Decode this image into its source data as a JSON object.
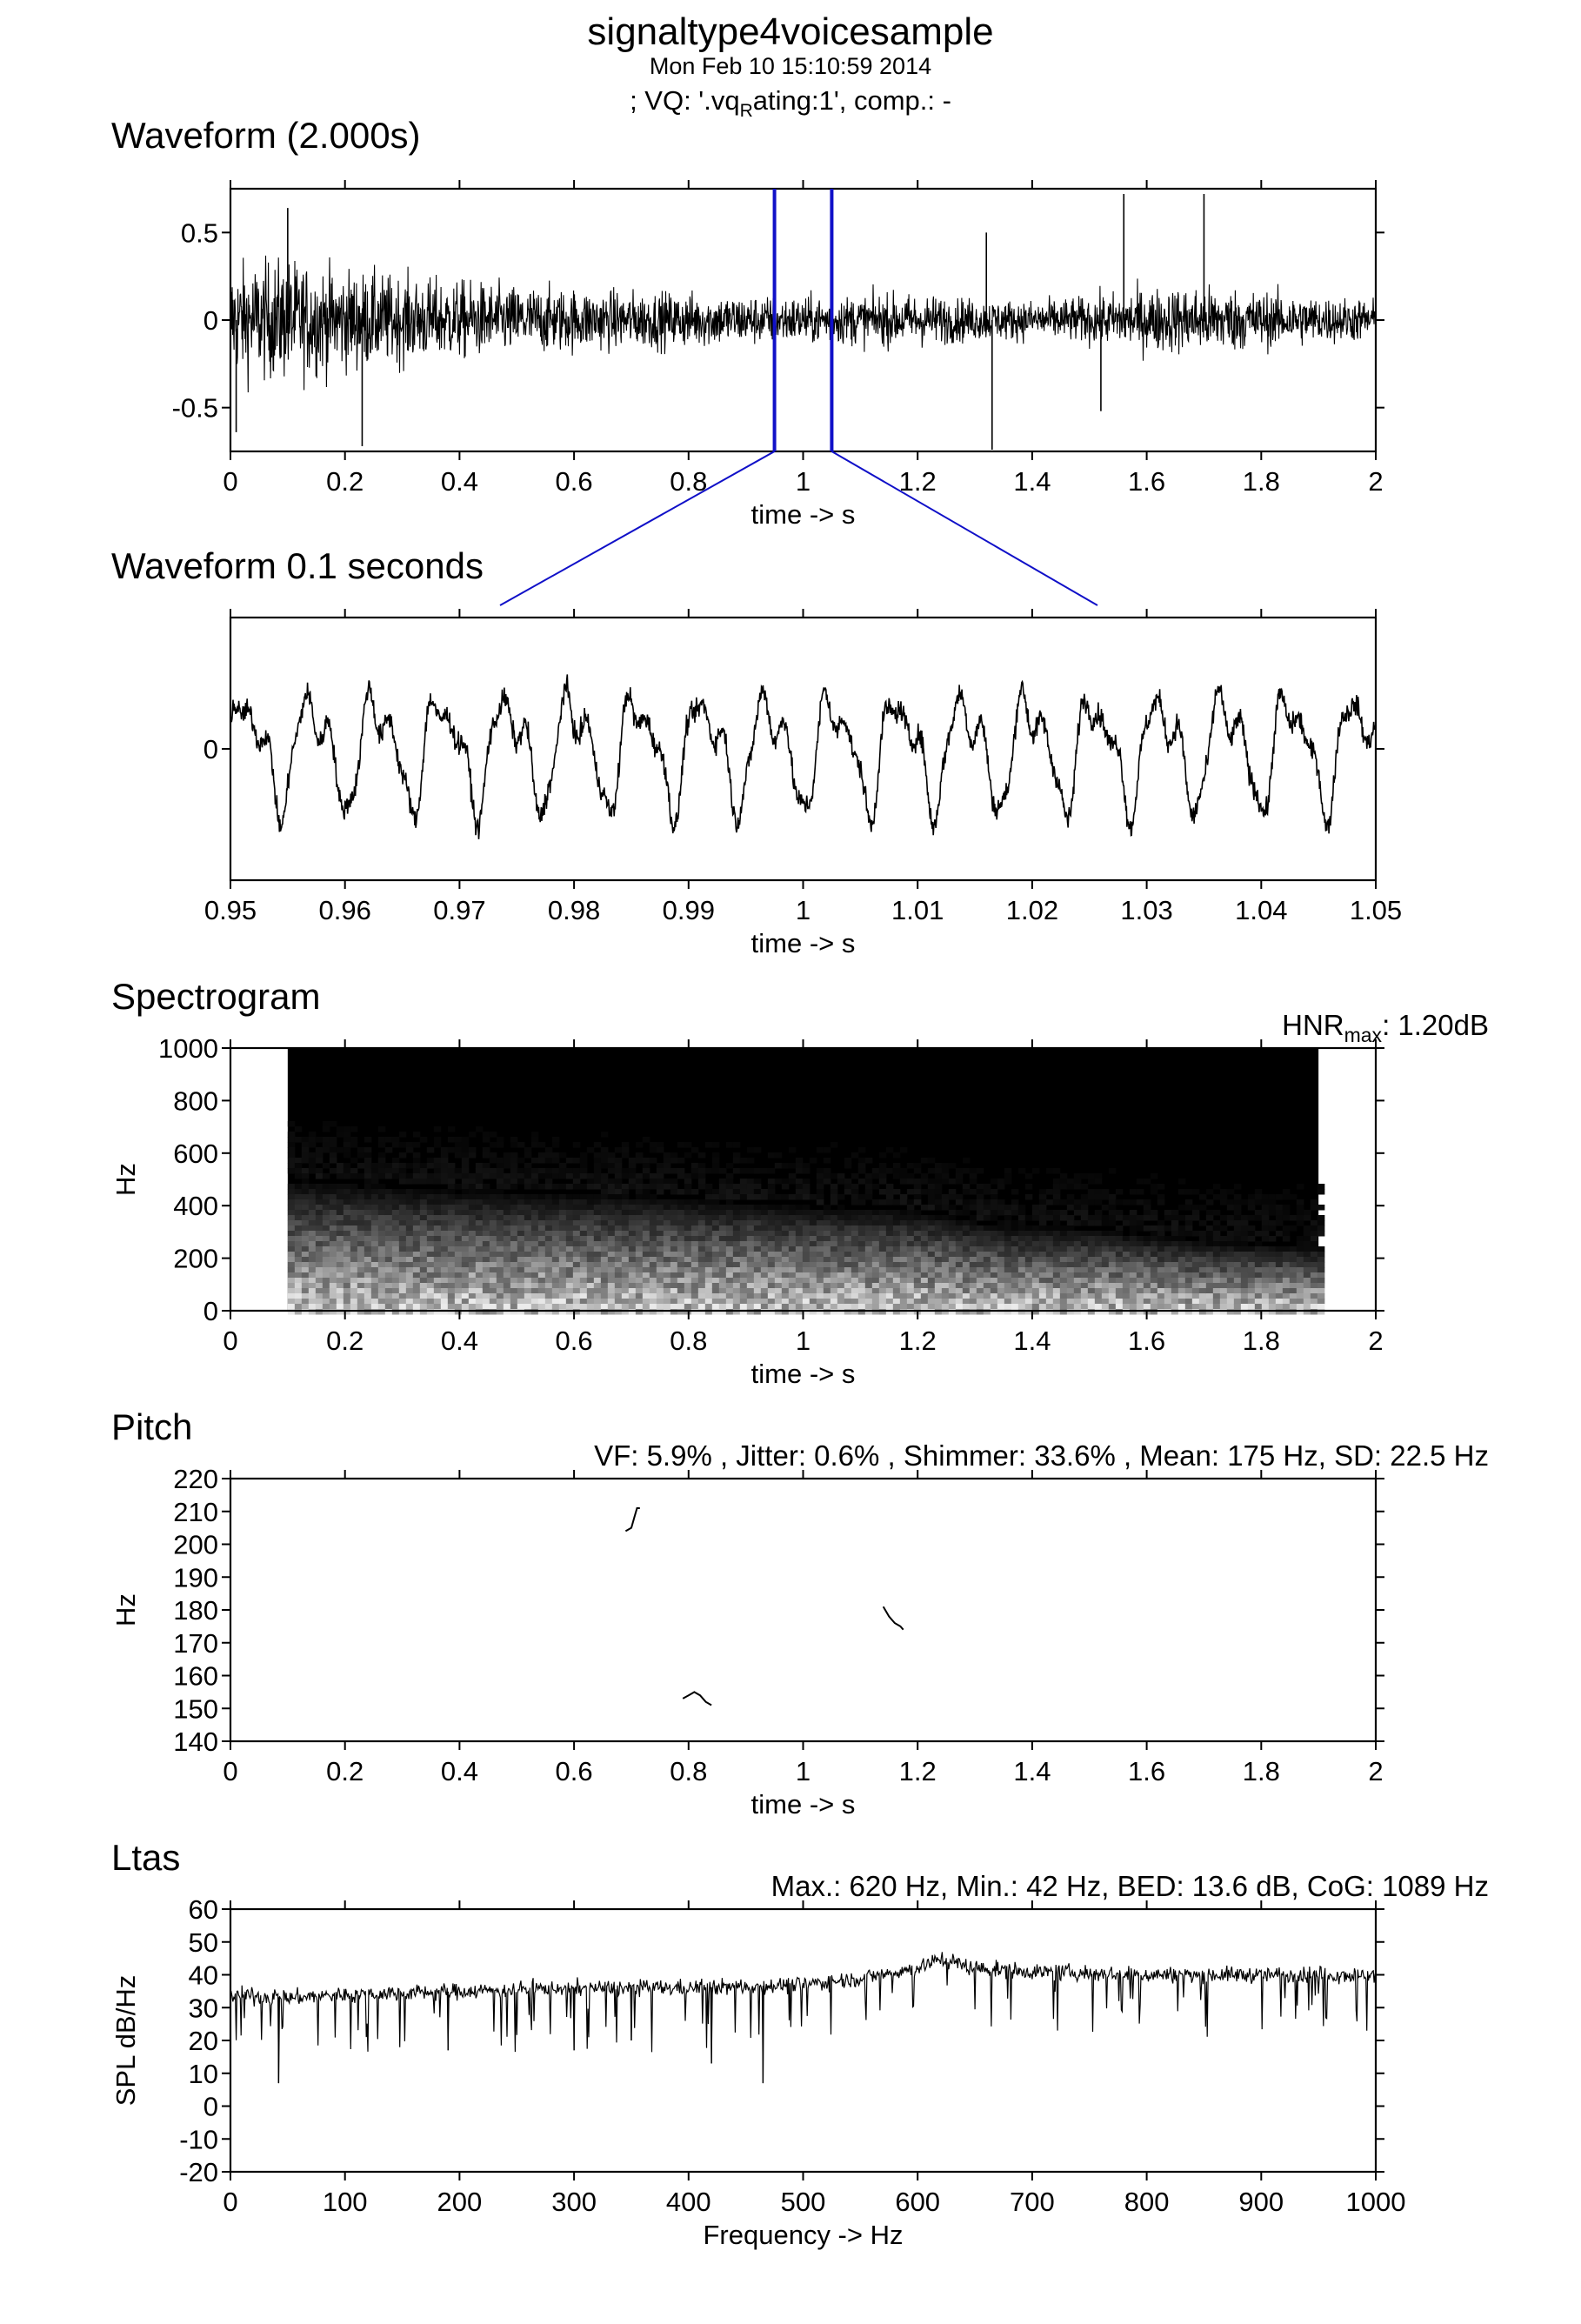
{
  "header": {
    "title": "signaltype4voicesample",
    "date": "Mon Feb 10 15:10:59 2014",
    "vq_pre": "; VQ: '.vq",
    "vq_sub": "R",
    "vq_post": "ating:1', comp.: -"
  },
  "colors": {
    "ink": "#000000",
    "zoom": "#1010c8",
    "background": "#ffffff"
  },
  "chart_data": [
    {
      "id": "waveform",
      "type": "line",
      "title": "Waveform (2.000s)",
      "xlabel": "time -> s",
      "ylabel": "",
      "xlim": [
        0,
        2
      ],
      "ylim": [
        -0.75,
        0.75
      ],
      "xticks": [
        0,
        0.2,
        0.4,
        0.6,
        0.8,
        1,
        1.2,
        1.4,
        1.6,
        1.8,
        2
      ],
      "xtick_labels": [
        "0",
        "0.2",
        "0.4",
        "0.6",
        "0.8",
        "1",
        "1.2",
        "1.4",
        "1.6",
        "1.8",
        "2"
      ],
      "yticks": [
        0.5,
        0,
        -0.5
      ],
      "ytick_labels": [
        "0.5",
        "0",
        "-0.5"
      ],
      "highlight_window": [
        0.95,
        1.05
      ],
      "envelope": {
        "t": [
          0,
          0.1,
          0.2,
          0.3,
          0.4,
          0.5,
          0.6,
          0.7,
          0.8,
          0.9,
          1.0,
          1.1,
          1.2,
          1.3,
          1.4,
          1.5,
          1.6,
          1.7,
          1.8,
          1.9,
          2.0
        ],
        "amp": [
          0.42,
          0.46,
          0.38,
          0.33,
          0.3,
          0.26,
          0.24,
          0.22,
          0.21,
          0.19,
          0.18,
          0.19,
          0.2,
          0.16,
          0.15,
          0.18,
          0.24,
          0.26,
          0.22,
          0.18,
          0.16
        ]
      },
      "spikes": [
        {
          "x": 0.1,
          "y": 0.64
        },
        {
          "x": 0.23,
          "y": -0.72
        },
        {
          "x": 1.33,
          "y": -0.74
        },
        {
          "x": 1.32,
          "y": 0.5
        },
        {
          "x": 1.56,
          "y": 0.72
        },
        {
          "x": 1.7,
          "y": 0.72
        },
        {
          "x": 1.52,
          "y": -0.52
        },
        {
          "x": 0.01,
          "y": -0.64
        }
      ]
    },
    {
      "id": "zoom",
      "type": "line",
      "title": "Waveform 0.1 seconds",
      "xlabel": "time -> s",
      "ylabel": "",
      "xlim": [
        0.95,
        1.05
      ],
      "ylim": [
        -0.25,
        0.25
      ],
      "xticks": [
        0.95,
        0.96,
        0.97,
        0.98,
        0.99,
        1.0,
        1.01,
        1.02,
        1.03,
        1.04,
        1.05
      ],
      "xtick_labels": [
        "0.95",
        "0.96",
        "0.97",
        "0.98",
        "0.99",
        "1",
        "1.01",
        "1.02",
        "1.03",
        "1.04",
        "1.05"
      ],
      "yticks": [
        0
      ],
      "ytick_labels": [
        "0"
      ],
      "period_s": 0.0057,
      "amplitude": 0.12
    },
    {
      "id": "spectrogram",
      "type": "heatmap",
      "title": "Spectrogram",
      "annotation_pre": "HNR",
      "annotation_sub": "max",
      "annotation_post": ": 1.20dB",
      "xlabel": "time -> s",
      "ylabel": "Hz",
      "xlim": [
        0,
        2
      ],
      "ylim": [
        0,
        1000
      ],
      "data_xlim": [
        0.1,
        1.9
      ],
      "xticks": [
        0,
        0.2,
        0.4,
        0.6,
        0.8,
        1,
        1.2,
        1.4,
        1.6,
        1.8,
        2
      ],
      "xtick_labels": [
        "0",
        "0.2",
        "0.4",
        "0.6",
        "0.8",
        "1",
        "1.2",
        "1.4",
        "1.6",
        "1.8",
        "2"
      ],
      "yticks": [
        0,
        200,
        400,
        600,
        800,
        1000
      ],
      "ytick_labels": [
        "0",
        "200",
        "400",
        "600",
        "800",
        "1000"
      ],
      "energy_ceiling_hz": [
        {
          "t": 0.1,
          "f": 520
        },
        {
          "t": 0.4,
          "f": 480
        },
        {
          "t": 0.7,
          "f": 460
        },
        {
          "t": 1.0,
          "f": 420
        },
        {
          "t": 1.2,
          "f": 400
        },
        {
          "t": 1.35,
          "f": 340
        },
        {
          "t": 1.5,
          "f": 330
        },
        {
          "t": 1.7,
          "f": 280
        },
        {
          "t": 1.9,
          "f": 260
        }
      ]
    },
    {
      "id": "pitch",
      "type": "line",
      "title": "Pitch",
      "annotation": "VF: 5.9% , Jitter: 0.6% , Shimmer: 33.6% , Mean: 175 Hz, SD: 22.5 Hz",
      "xlabel": "time -> s",
      "ylabel": "Hz",
      "xlim": [
        0,
        2
      ],
      "ylim": [
        140,
        220
      ],
      "xticks": [
        0,
        0.2,
        0.4,
        0.6,
        0.8,
        1,
        1.2,
        1.4,
        1.6,
        1.8,
        2
      ],
      "xtick_labels": [
        "0",
        "0.2",
        "0.4",
        "0.6",
        "0.8",
        "1",
        "1.2",
        "1.4",
        "1.6",
        "1.8",
        "2"
      ],
      "yticks": [
        140,
        150,
        160,
        170,
        180,
        190,
        200,
        210,
        220
      ],
      "ytick_labels": [
        "140",
        "150",
        "160",
        "170",
        "180",
        "190",
        "200",
        "210",
        "220"
      ],
      "segments": [
        [
          [
            0.69,
            204
          ],
          [
            0.7,
            205
          ],
          [
            0.705,
            208
          ],
          [
            0.71,
            211
          ],
          [
            0.715,
            211
          ]
        ],
        [
          [
            0.79,
            153
          ],
          [
            0.8,
            154
          ],
          [
            0.81,
            155
          ],
          [
            0.82,
            154
          ],
          [
            0.83,
            152
          ],
          [
            0.84,
            151
          ]
        ],
        [
          [
            1.14,
            181
          ],
          [
            1.15,
            178
          ],
          [
            1.16,
            176
          ],
          [
            1.17,
            175
          ],
          [
            1.175,
            174
          ]
        ]
      ]
    },
    {
      "id": "ltas",
      "type": "line",
      "title": "Ltas",
      "annotation": "Max.: 620 Hz, Min.: 42 Hz, BED: 13.6 dB, CoG: 1089 Hz",
      "xlabel": "Frequency -> Hz",
      "ylabel": "SPL dB/Hz",
      "xlim": [
        0,
        1000
      ],
      "ylim": [
        -20,
        60
      ],
      "xticks": [
        0,
        100,
        200,
        300,
        400,
        500,
        600,
        700,
        800,
        900,
        1000
      ],
      "xtick_labels": [
        "0",
        "100",
        "200",
        "300",
        "400",
        "500",
        "600",
        "700",
        "800",
        "900",
        "1000"
      ],
      "yticks": [
        -20,
        -10,
        0,
        10,
        20,
        30,
        40,
        50,
        60
      ],
      "ytick_labels": [
        "-20",
        "-10",
        "0",
        "10",
        "20",
        "30",
        "40",
        "50",
        "60"
      ],
      "trend": {
        "f": [
          0,
          50,
          100,
          200,
          300,
          400,
          500,
          550,
          600,
          620,
          650,
          700,
          800,
          900,
          1000
        ],
        "db": [
          34,
          33,
          34,
          35,
          36,
          36,
          37,
          39,
          42,
          45,
          42,
          41,
          40,
          40,
          40
        ]
      },
      "dips": [
        {
          "f": 42,
          "db": 7
        },
        {
          "f": 465,
          "db": 7
        },
        {
          "f": 420,
          "db": 13
        },
        {
          "f": 190,
          "db": 17
        },
        {
          "f": 300,
          "db": 17
        },
        {
          "f": 350,
          "db": 20
        }
      ]
    }
  ]
}
